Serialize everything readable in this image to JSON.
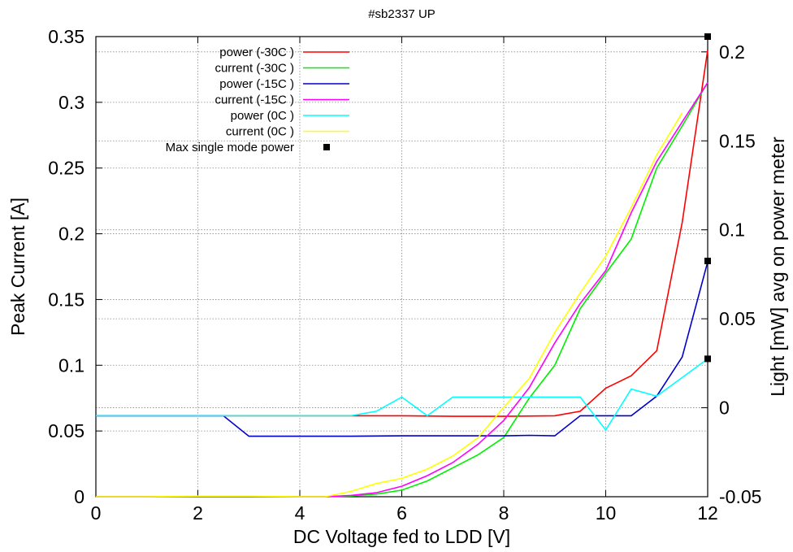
{
  "chart_data": {
    "type": "line",
    "title": "#sb2337 UP",
    "xlabel": "DC Voltage fed to LDD [V]",
    "ylabel": "Peak Current [A]",
    "y2label": "Light [mW] avg on power meter",
    "xlim": [
      0,
      12
    ],
    "ylim": [
      0,
      0.35
    ],
    "y2lim": [
      -0.05,
      0.2086
    ],
    "grid": true,
    "legend_position": "top-left",
    "x_ticks": [
      "0",
      "2",
      "4",
      "6",
      "8",
      "10",
      "12"
    ],
    "y_ticks": [
      "0",
      "0.05",
      "0.1",
      "0.15",
      "0.2",
      "0.25",
      "0.3",
      "0.35"
    ],
    "y2_ticks": [
      "-0.05",
      "0",
      "0.05",
      "0.1",
      "0.15",
      "0.2"
    ],
    "series": [
      {
        "name": "power (-30C )",
        "axis": "y2",
        "color": "#ff0000",
        "x": [
          0,
          1,
          2,
          3,
          4,
          5,
          6,
          7,
          8,
          9,
          9.5,
          10,
          10.5,
          11,
          11.5,
          12
        ],
        "y": [
          -0.0045,
          -0.0045,
          -0.0045,
          -0.0045,
          -0.0045,
          -0.0045,
          -0.0045,
          -0.0048,
          -0.0048,
          -0.0045,
          -0.002,
          0.011,
          0.018,
          0.032,
          0.104,
          0.201
        ]
      },
      {
        "name": "current (-30C )",
        "axis": "y",
        "color": "#00ee00",
        "x": [
          0,
          1,
          2,
          3,
          4,
          4.5,
          5,
          5.5,
          6,
          6.5,
          7,
          7.5,
          8,
          8.5,
          9,
          9.5,
          10,
          10.5,
          11,
          11.5,
          12
        ],
        "y": [
          0,
          0,
          0,
          0,
          0,
          0,
          0.0005,
          0.002,
          0.005,
          0.012,
          0.022,
          0.032,
          0.045,
          0.075,
          0.1,
          0.143,
          0.17,
          0.196,
          0.25,
          0.282,
          0.315
        ]
      },
      {
        "name": "power (-15C )",
        "axis": "y2",
        "color": "#0000cc",
        "x": [
          0,
          1,
          2,
          2.5,
          3,
          4,
          5,
          6,
          7,
          8,
          8.5,
          9,
          9.5,
          10,
          10.5,
          11,
          11.5,
          12
        ],
        "y": [
          -0.0045,
          -0.0045,
          -0.0045,
          -0.0045,
          -0.016,
          -0.016,
          -0.016,
          -0.0158,
          -0.0158,
          -0.0158,
          -0.0155,
          -0.0158,
          -0.0045,
          -0.0045,
          -0.0045,
          0.0065,
          0.0285,
          0.082
        ]
      },
      {
        "name": "current (-15C )",
        "axis": "y",
        "color": "#ff00ff",
        "x": [
          0,
          1,
          2,
          3,
          4,
          4.5,
          5,
          5.5,
          6,
          6.5,
          7,
          7.5,
          8,
          8.5,
          9,
          9.5,
          10,
          10.5,
          11,
          11.5,
          12
        ],
        "y": [
          0,
          0,
          0,
          0,
          0,
          0,
          0.001,
          0.003,
          0.008,
          0.016,
          0.026,
          0.04,
          0.058,
          0.083,
          0.117,
          0.147,
          0.172,
          0.216,
          0.255,
          0.285,
          0.315
        ]
      },
      {
        "name": "power (0C )",
        "axis": "y2",
        "color": "#00ffff",
        "x": [
          0,
          1,
          2,
          3,
          4,
          5,
          5.5,
          6,
          6.5,
          7,
          8,
          9,
          9.5,
          10,
          10.5,
          11,
          11.5,
          12
        ],
        "y": [
          -0.0045,
          -0.0045,
          -0.0045,
          -0.0045,
          -0.0045,
          -0.0045,
          -0.002,
          0.006,
          -0.0045,
          0.006,
          0.006,
          0.006,
          0.006,
          -0.0125,
          0.0105,
          0.0065,
          0.017,
          0.0275
        ]
      },
      {
        "name": "current (0C )",
        "axis": "y",
        "color": "#ffff00",
        "x": [
          0,
          1,
          2,
          3,
          4,
          4.5,
          5,
          5.5,
          6,
          6.5,
          7,
          7.5,
          8,
          8.5,
          9,
          9.5,
          10,
          10.5,
          11,
          11.5
        ],
        "y": [
          0,
          0,
          0.0005,
          0.0005,
          0,
          0,
          0.004,
          0.01,
          0.014,
          0.021,
          0.031,
          0.045,
          0.068,
          0.09,
          0.125,
          0.155,
          0.183,
          0.22,
          0.26,
          0.292
        ]
      }
    ],
    "max_single_mode_power": {
      "name": "Max single mode power",
      "axis": "y2",
      "color": "#000000",
      "x": [
        12,
        12,
        12
      ],
      "y": [
        0.2086,
        0.0825,
        0.0275
      ]
    }
  }
}
